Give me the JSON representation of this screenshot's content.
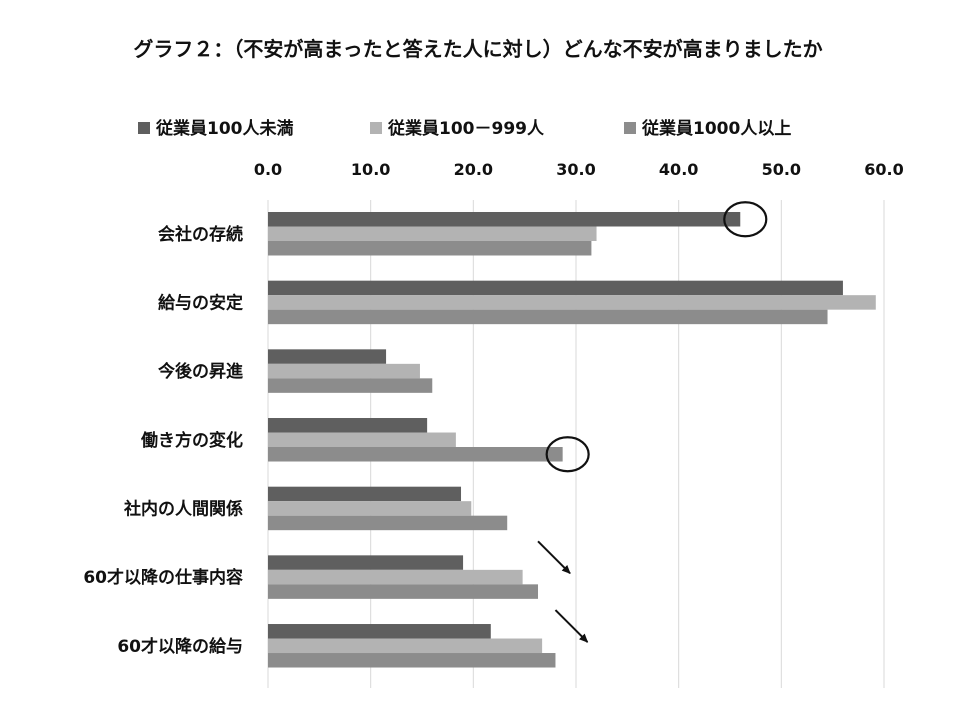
{
  "chart_data": {
    "type": "bar",
    "orientation": "horizontal",
    "title": "グラフ２：（不安が高まったと答えた人に対し）どんな不安が高まりましたか",
    "categories": [
      "会社の存続",
      "給与の安定",
      "今後の昇進",
      "働き方の変化",
      "社内の人間関係",
      "60才以降の仕事内容",
      "60才以降の給与"
    ],
    "series": [
      {
        "name": "従業員100人未満",
        "color": "#5f5f5f",
        "values": [
          46.0,
          56.0,
          11.5,
          15.5,
          18.8,
          19.0,
          21.7
        ]
      },
      {
        "name": "従業員100－999人",
        "color": "#b3b3b3",
        "values": [
          32.0,
          59.2,
          14.8,
          18.3,
          19.8,
          24.8,
          26.7
        ]
      },
      {
        "name": "従業員1000人以上",
        "color": "#8c8c8c",
        "values": [
          31.5,
          54.5,
          16.0,
          28.7,
          23.3,
          26.3,
          28.0
        ]
      }
    ],
    "xlim": [
      0,
      60
    ],
    "x_ticks": [
      0,
      10,
      20,
      30,
      40,
      50,
      60
    ],
    "x_tick_labels": [
      "0.0",
      "10.0",
      "20.0",
      "30.0",
      "40.0",
      "50.0",
      "60.0"
    ],
    "xlabel": "",
    "ylabel": "",
    "grid": true,
    "legend_position": "top",
    "x_axis_position": "top",
    "annotations": [
      {
        "type": "circle",
        "category": "会社の存続",
        "series": "従業員100人未満"
      },
      {
        "type": "circle",
        "category": "働き方の変化",
        "series": "従業員1000人以上"
      },
      {
        "type": "arrow",
        "direction": "down-right",
        "category": "60才以降の仕事内容"
      },
      {
        "type": "arrow",
        "direction": "down-right",
        "category": "60才以降の給与"
      }
    ]
  }
}
